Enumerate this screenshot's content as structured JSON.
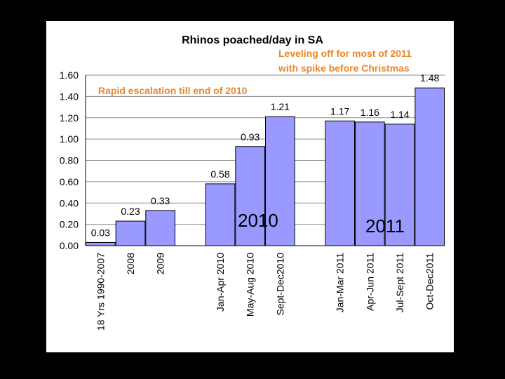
{
  "chart_data": {
    "type": "bar",
    "title": "Rhinos poached/day in SA",
    "categories": [
      "18 Yrs 1990-2007",
      "2008",
      "2009",
      "",
      "Jan-Apr 2010",
      "May-Aug 2010",
      "Sept-Dec2010",
      "",
      "Jan-Mar 2011",
      "Apr-Jun 2011",
      "Jul-Sept 2011",
      "Oct-Dec2011"
    ],
    "values": [
      0.03,
      0.23,
      0.33,
      null,
      0.58,
      0.93,
      1.21,
      null,
      1.17,
      1.16,
      1.14,
      1.48
    ],
    "data_labels": [
      "0.03",
      "0.23",
      "0.33",
      "",
      "0.58",
      "0.93",
      "1.21",
      "",
      "1.17",
      "1.16",
      "1.14",
      "1.48"
    ],
    "ylim": [
      0,
      1.6
    ],
    "yticks": [
      "0.00",
      "0.20",
      "0.40",
      "0.60",
      "0.80",
      "1.00",
      "1.20",
      "1.40",
      "1.60"
    ],
    "grid": true,
    "bar_color": "#9999ff",
    "annotations": [
      {
        "text": "Leveling off for most of 2011",
        "color": "#e8862a"
      },
      {
        "text": "with spike before Christmas",
        "color": "#e8862a"
      },
      {
        "text": "Rapid escalation till end of 2010",
        "color": "#e8862a"
      },
      {
        "text": "2010",
        "color": "#000000"
      },
      {
        "text": "2011",
        "color": "#000000"
      }
    ]
  }
}
